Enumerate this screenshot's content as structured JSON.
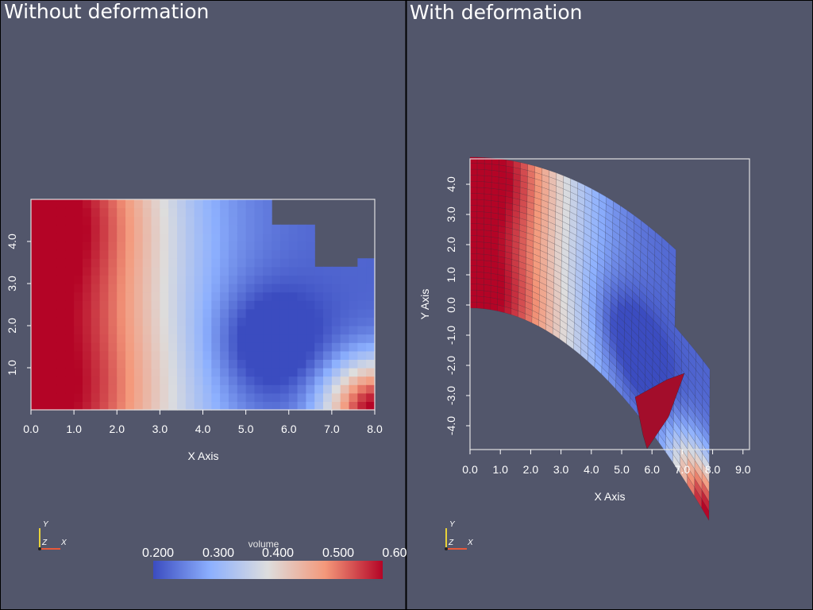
{
  "panels": [
    {
      "title": "Without deformation",
      "x_axis": {
        "label": "X Axis",
        "ticks": [
          "0.0",
          "1.0",
          "2.0",
          "3.0",
          "4.0",
          "5.0",
          "6.0",
          "7.0",
          "8.0"
        ]
      },
      "y_axis": {
        "label": "",
        "ticks": [
          "1.0",
          "2.0",
          "3.0",
          "4.0"
        ]
      }
    },
    {
      "title": "With deformation",
      "x_axis": {
        "label": "X Axis",
        "ticks": [
          "0.0",
          "1.0",
          "2.0",
          "3.0",
          "4.0",
          "5.0",
          "6.0",
          "7.0",
          "8.0",
          "9.0"
        ]
      },
      "y_axis": {
        "label": "Y Axis",
        "ticks": [
          "-4.0",
          "-3.0",
          "-2.0",
          "-1.0",
          "0.0",
          "1.0",
          "2.0",
          "3.0",
          "4.0"
        ]
      }
    }
  ],
  "orientation_axes": {
    "x": "X",
    "y": "Y",
    "z": "Z",
    "x_color": "#e8593a",
    "y_color": "#e8d23a"
  },
  "colorbar": {
    "title": "volume",
    "ticks": [
      "0.200",
      "0.300",
      "0.400",
      "0.500",
      "0.60"
    ],
    "colormap": [
      "#3b4cc0",
      "#8db0fe",
      "#dddddd",
      "#f4987a",
      "#b40426"
    ]
  },
  "colors": {
    "background": "#52566b",
    "divider": "#000000",
    "axis": "#ffffff"
  }
}
